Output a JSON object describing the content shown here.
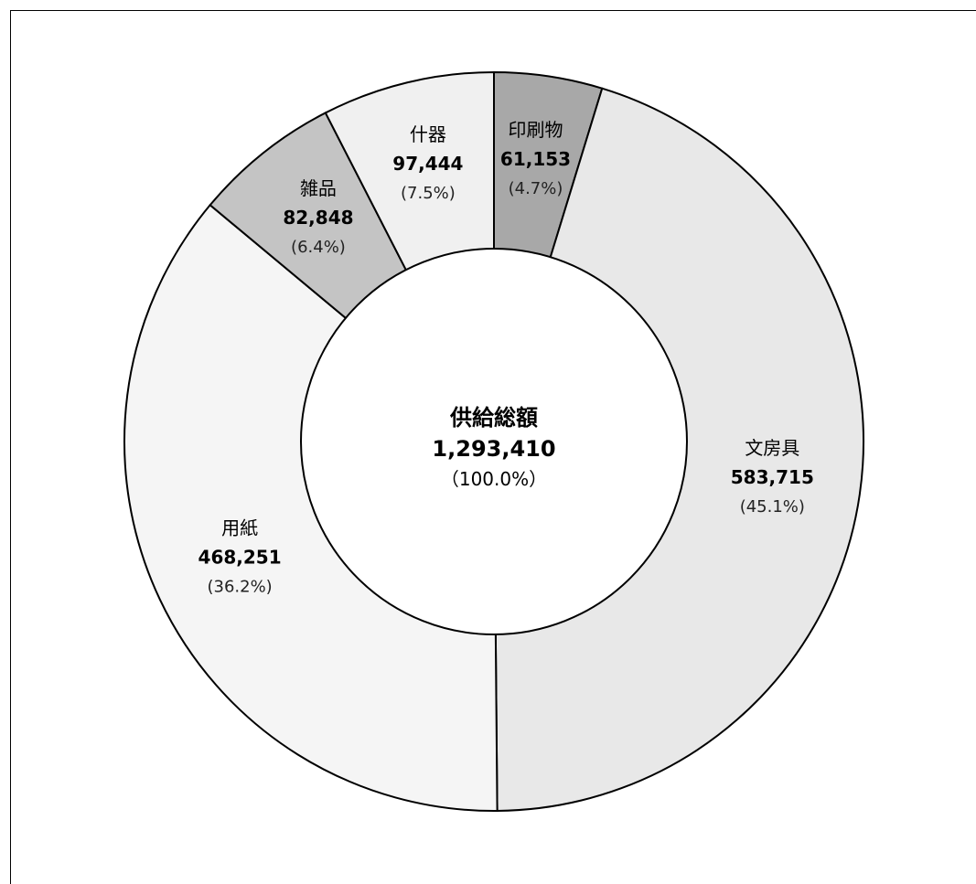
{
  "chart_data": {
    "type": "pie",
    "donut": true,
    "center": {
      "title": "供給総額",
      "value": "1,293,410",
      "percent": "（100.0%）"
    },
    "slices": [
      {
        "label": "印刷物",
        "value": 61153,
        "value_text": "61,153",
        "percent_text": "(4.7%)",
        "color": "#a8a8a8"
      },
      {
        "label": "文房具",
        "value": 583715,
        "value_text": "583,715",
        "percent_text": "(45.1%)",
        "color": "#e8e8e8"
      },
      {
        "label": "用紙",
        "value": 468251,
        "value_text": "468,251",
        "percent_text": "(36.2%)",
        "color": "#f5f5f5"
      },
      {
        "label": "雑品",
        "value": 82848,
        "value_text": "82,848",
        "percent_text": "(6.4%)",
        "color": "#c4c4c4"
      },
      {
        "label": "什器",
        "value": 97444,
        "value_text": "97,444",
        "percent_text": "(7.5%)",
        "color": "#f0f0f0"
      }
    ]
  }
}
